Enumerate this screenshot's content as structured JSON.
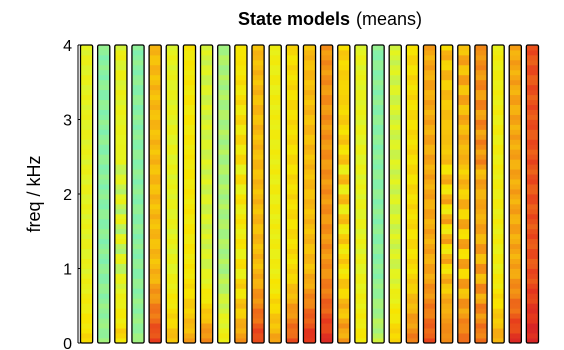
{
  "chart_data": {
    "type": "heatmap",
    "title": "State models",
    "title_suffix": "(means)",
    "ylabel": "freq / kHz",
    "xlabel": "",
    "ylim": [
      0,
      4
    ],
    "yticks": [
      0,
      1,
      2,
      3,
      4
    ],
    "ytick_labels": [
      "0",
      "1",
      "2",
      "3",
      "4"
    ],
    "n_states": 27,
    "colormap": [
      "#7cf0b4",
      "#a6f27a",
      "#e4f420",
      "#f8e400",
      "#f6b410",
      "#f07818",
      "#e63a1c",
      "#d01a2a"
    ],
    "states": [
      {
        "base": 0.3,
        "low": 0.45,
        "band": 0.0
      },
      {
        "base": 0.05,
        "low": 0.1,
        "band": 0.0
      },
      {
        "base": 0.35,
        "low": 0.7,
        "band": 0.55
      },
      {
        "base": 0.05,
        "low": 0.1,
        "band": 0.0
      },
      {
        "base": 0.55,
        "low": 0.85,
        "band": 0.0
      },
      {
        "base": 0.3,
        "low": 0.55,
        "band": 0.0
      },
      {
        "base": 0.4,
        "low": 0.6,
        "band": 0.0
      },
      {
        "base": 0.25,
        "low": 0.7,
        "band": 0.0
      },
      {
        "base": 0.15,
        "low": 0.35,
        "band": 0.0
      },
      {
        "base": 0.45,
        "low": 0.85,
        "band": 0.75
      },
      {
        "base": 0.55,
        "low": 0.85,
        "band": 0.0
      },
      {
        "base": 0.35,
        "low": 0.6,
        "band": 0.0
      },
      {
        "base": 0.45,
        "low": 0.8,
        "band": 0.0
      },
      {
        "base": 0.55,
        "low": 0.9,
        "band": 0.0
      },
      {
        "base": 0.65,
        "low": 0.9,
        "band": 0.0
      },
      {
        "base": 0.5,
        "low": 0.8,
        "band": 0.85
      },
      {
        "base": 0.3,
        "low": 0.4,
        "band": 0.0
      },
      {
        "base": 0.05,
        "low": 0.2,
        "band": 0.0
      },
      {
        "base": 0.25,
        "low": 0.5,
        "band": 0.0
      },
      {
        "base": 0.45,
        "low": 0.7,
        "band": 0.0
      },
      {
        "base": 0.6,
        "low": 0.8,
        "band": 0.0
      },
      {
        "base": 0.55,
        "low": 0.85,
        "band": 0.9
      },
      {
        "base": 0.6,
        "low": 0.9,
        "band": 0.9
      },
      {
        "base": 0.7,
        "low": 0.9,
        "band": 0.9
      },
      {
        "base": 0.35,
        "low": 0.6,
        "band": 0.0
      },
      {
        "base": 0.6,
        "low": 0.9,
        "band": 0.0
      },
      {
        "base": 0.8,
        "low": 0.95,
        "band": 0.0
      }
    ]
  }
}
